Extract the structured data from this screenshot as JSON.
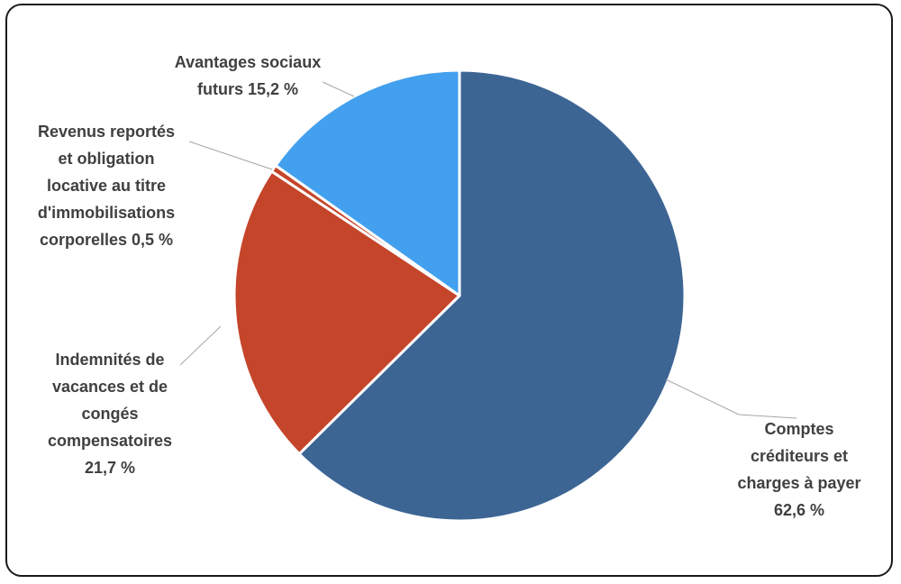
{
  "chart_data": {
    "type": "pie",
    "title": "",
    "start_angle_deg": 0,
    "direction": "clockwise",
    "slices": [
      {
        "name": "Comptes créditeurs et charges à payer",
        "value": 62.6,
        "color": "#3d6594",
        "label_lines": [
          "Comptes",
          "créditeurs et",
          "charges à payer",
          "62,6 %"
        ]
      },
      {
        "name": "Indemnités de vacances et de congés compensatoires",
        "value": 21.7,
        "color": "#c5452a",
        "label_lines": [
          "Indemnités de",
          "vacances et de",
          "congés",
          "compensatoires",
          "21,7 %"
        ]
      },
      {
        "name": "Revenus reportés et obligation locative au titre d'immobilisations corporelles",
        "value": 0.5,
        "color": "#c5452a",
        "label_lines": [
          "Revenus reportés",
          "et obligation",
          "locative au titre",
          "d'immobilisations",
          "corporelles 0,5 %"
        ]
      },
      {
        "name": "Avantages sociaux futurs",
        "value": 15.2,
        "color": "#43a0ee",
        "label_lines": [
          "Avantages sociaux",
          "futurs 15,2 %"
        ]
      }
    ],
    "legend": "none",
    "data_labels": "outside with leader lines"
  }
}
